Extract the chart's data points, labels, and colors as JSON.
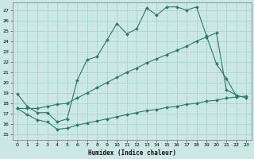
{
  "xlabel": "Humidex (Indice chaleur)",
  "bg_color": "#cce8e4",
  "grid_color": "#aad4ce",
  "line_color": "#2a7a6a",
  "xlim": [
    -0.5,
    23.5
  ],
  "ylim": [
    14.5,
    27.7
  ],
  "xticks": [
    0,
    1,
    2,
    3,
    4,
    5,
    6,
    7,
    8,
    9,
    10,
    11,
    12,
    13,
    14,
    15,
    16,
    17,
    18,
    19,
    20,
    21,
    22,
    23
  ],
  "yticks": [
    15,
    16,
    17,
    18,
    19,
    20,
    21,
    22,
    23,
    24,
    25,
    26,
    27
  ],
  "line1_x": [
    0,
    1,
    2,
    3,
    4,
    5,
    6,
    7,
    8,
    9,
    10,
    11,
    12,
    13,
    14,
    15,
    16,
    17,
    18,
    19,
    20,
    21,
    22
  ],
  "line1_y": [
    18.9,
    17.7,
    17.1,
    17.1,
    16.2,
    16.5,
    20.2,
    22.2,
    22.5,
    24.1,
    25.7,
    24.7,
    25.2,
    27.2,
    26.5,
    27.3,
    27.3,
    27.0,
    27.3,
    24.5,
    21.8,
    20.4,
    18.7
  ],
  "line2_x": [
    0,
    1,
    2,
    3,
    4,
    5,
    6,
    7,
    8,
    9,
    10,
    11,
    12,
    13,
    14,
    15,
    16,
    17,
    18,
    19,
    20,
    21,
    22,
    23
  ],
  "line2_y": [
    17.5,
    16.9,
    16.4,
    16.2,
    15.5,
    15.6,
    15.9,
    16.1,
    16.3,
    16.5,
    16.7,
    16.9,
    17.1,
    17.3,
    17.4,
    17.6,
    17.7,
    17.9,
    18.0,
    18.2,
    18.3,
    18.5,
    18.6,
    18.7
  ],
  "line3_x": [
    0,
    1,
    2,
    3,
    4,
    5,
    6,
    7,
    8,
    9,
    10,
    11,
    12,
    13,
    14,
    15,
    16,
    17,
    18,
    19,
    20,
    21,
    22,
    23
  ],
  "line3_y": [
    17.5,
    17.5,
    17.5,
    17.7,
    17.9,
    18.0,
    18.5,
    19.0,
    19.5,
    20.0,
    20.5,
    21.0,
    21.4,
    21.9,
    22.3,
    22.7,
    23.1,
    23.5,
    24.0,
    24.4,
    24.8,
    19.3,
    18.8,
    18.5
  ],
  "marker": "D",
  "markersize": 2.0,
  "linewidth": 0.8
}
